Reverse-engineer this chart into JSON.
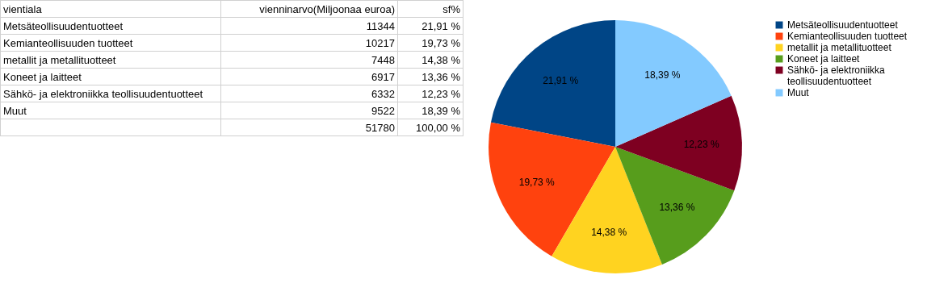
{
  "chart_data": {
    "type": "pie",
    "categories": [
      "Metsäteollisuudentuotteet",
      "Kemianteollisuuden tuotteet",
      "metallit ja metallituotteet",
      "Koneet ja laitteet",
      "Sähkö- ja elektroniikka teollisuudentuotteet",
      "Muut"
    ],
    "values": [
      21.91,
      19.73,
      14.38,
      13.36,
      12.23,
      18.39
    ],
    "value_labels": [
      "21,91 %",
      "19,73 %",
      "14,38 %",
      "13,36 %",
      "12,23 %",
      "18,39 %"
    ],
    "colors": [
      "#004586",
      "#ff420e",
      "#ffd320",
      "#579d1c",
      "#7e0021",
      "#83caff"
    ],
    "legend": "right",
    "annotations": [
      "vientiala",
      "vienninarvo(Miljoonaa euroa)",
      "sf%",
      "11344",
      "10217",
      "7448",
      "6917",
      "6332",
      "9522",
      "51780",
      "100,00 %"
    ]
  }
}
